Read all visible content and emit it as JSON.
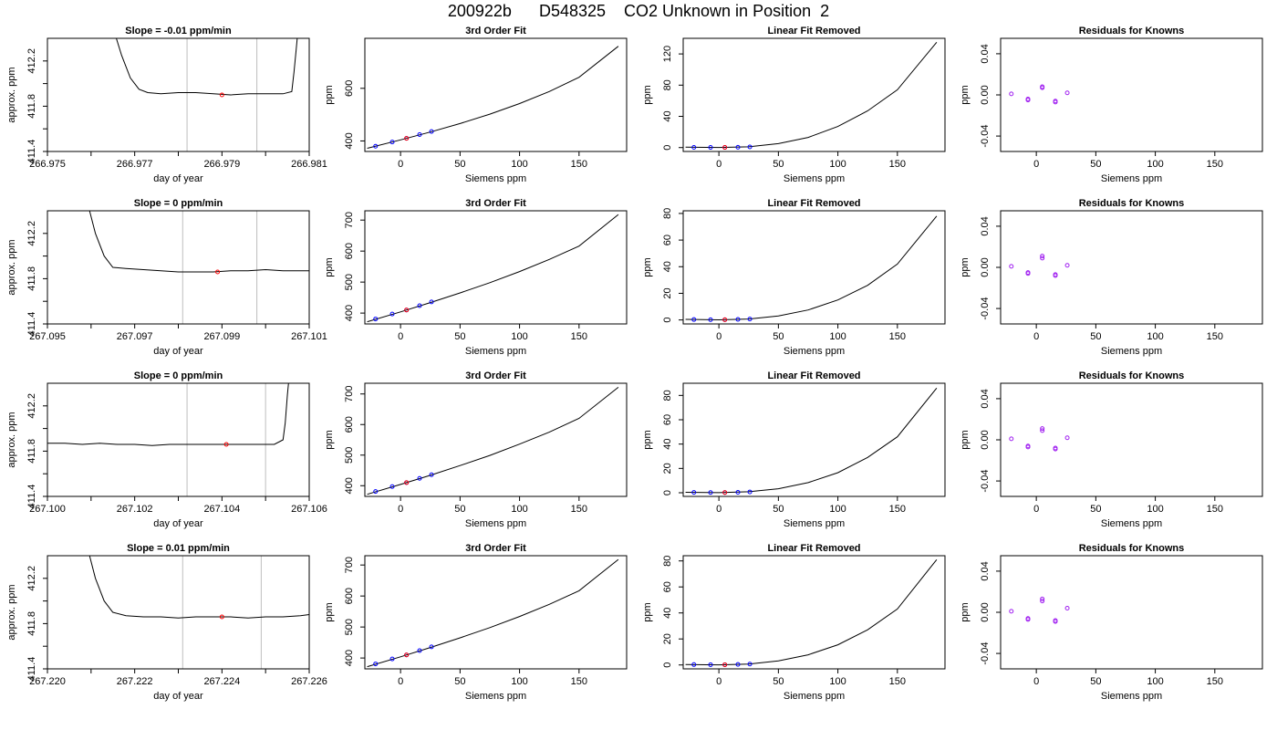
{
  "title": "200922b      D548325    CO2 Unknown in Position  2",
  "colors": {
    "trace": "#000000",
    "marker_blue": "#0000ff",
    "marker_red": "#ff0000",
    "marker_purple": "#a020f0",
    "vline": "#bebebe"
  },
  "chart_data": [
    {
      "type": "line",
      "row": 1,
      "panel": "time-series",
      "title": "Slope =  -0.01  ppm/min",
      "xlabel": "day of year",
      "ylabel": "approx. ppm",
      "xlim": [
        266.975,
        266.981
      ],
      "ylim": [
        411.4,
        412.4
      ],
      "xticks": [
        "266.975",
        "266.977",
        "266.979",
        "266.981"
      ],
      "yticks": [
        "411.4",
        "411.8",
        "412.2"
      ],
      "vlines": [
        266.9782,
        266.9798
      ],
      "marker": {
        "x": 266.979,
        "y": 411.9
      },
      "series": [
        {
          "x": [
            266.9765,
            266.9767,
            266.9769,
            266.9771,
            266.9773,
            266.9776,
            266.978,
            266.9784,
            266.9788,
            266.9792,
            266.9796,
            266.98,
            266.9804,
            266.9806,
            266.98065,
            266.9807,
            266.98075
          ],
          "y": [
            412.5,
            412.25,
            412.05,
            411.95,
            411.92,
            411.91,
            411.92,
            411.92,
            411.91,
            411.9,
            411.91,
            411.91,
            411.91,
            411.93,
            412.1,
            412.3,
            412.5
          ]
        }
      ]
    },
    {
      "type": "line",
      "row": 1,
      "panel": "fit",
      "title": "3rd Order Fit",
      "xlabel": "Siemens ppm",
      "ylabel": "ppm",
      "xlim": [
        -30,
        190
      ],
      "ylim": [
        360,
        790
      ],
      "xticks": [
        "0",
        "50",
        "100",
        "150"
      ],
      "yticks": [
        "400",
        "600"
      ],
      "curve": {
        "x": [
          -28,
          0,
          25,
          50,
          75,
          100,
          125,
          150,
          183
        ],
        "y": [
          372,
          404,
          434,
          466,
          502,
          542,
          588,
          642,
          760
        ]
      },
      "points": {
        "x": [
          -21,
          -7,
          5,
          16,
          26
        ],
        "y": [
          380,
          396,
          410,
          424,
          436
        ]
      },
      "ref_point": {
        "x": 5,
        "y": 410
      }
    },
    {
      "type": "line",
      "row": 1,
      "panel": "residual-fit",
      "title": "Linear Fit Removed",
      "xlabel": "Siemens ppm",
      "ylabel": "ppm",
      "xlim": [
        -30,
        190
      ],
      "ylim": [
        -5,
        140
      ],
      "xticks": [
        "0",
        "50",
        "100",
        "150"
      ],
      "yticks": [
        "0",
        "40",
        "80",
        "120"
      ],
      "curve": {
        "x": [
          -28,
          0,
          25,
          50,
          75,
          100,
          125,
          150,
          183
        ],
        "y": [
          0.5,
          0.1,
          1.0,
          5.0,
          13.0,
          27.0,
          47.0,
          74.0,
          135.0
        ]
      },
      "points": {
        "x": [
          -21,
          -7,
          5,
          16,
          26
        ],
        "y": [
          0.3,
          0.2,
          0.2,
          0.4,
          0.8
        ]
      },
      "ref_point": {
        "x": 5,
        "y": 0.2
      }
    },
    {
      "type": "scatter",
      "row": 1,
      "panel": "residuals",
      "title": "Residuals for Knowns",
      "xlabel": "Siemens ppm",
      "ylabel": "ppm",
      "xlim": [
        -30,
        190
      ],
      "ylim": [
        -0.055,
        0.055
      ],
      "xticks": [
        "0",
        "50",
        "100",
        "150"
      ],
      "yticks": [
        "-0.04",
        "0.00",
        "0.04"
      ],
      "points": {
        "x": [
          -21,
          -7,
          -7,
          5,
          5,
          16,
          16,
          26
        ],
        "y": [
          0.001,
          -0.004,
          -0.005,
          0.008,
          0.007,
          -0.006,
          -0.007,
          0.002
        ]
      }
    },
    {
      "type": "line",
      "row": 2,
      "panel": "time-series",
      "title": "Slope =  0  ppm/min",
      "xlabel": "day of year",
      "ylabel": "approx. ppm",
      "xlim": [
        267.095,
        267.101
      ],
      "ylim": [
        411.4,
        412.4
      ],
      "xticks": [
        "267.095",
        "267.097",
        "267.099",
        "267.101"
      ],
      "yticks": [
        "411.4",
        "411.8",
        "412.2"
      ],
      "vlines": [
        267.0981,
        267.0998
      ],
      "marker": {
        "x": 267.0989,
        "y": 411.86
      },
      "series": [
        {
          "x": [
            267.0959,
            267.0961,
            267.0963,
            267.0965,
            267.0968,
            267.0972,
            267.0976,
            267.098,
            267.0984,
            267.0988,
            267.0992,
            267.0996,
            267.1,
            267.1004,
            267.1008,
            267.101
          ],
          "y": [
            412.5,
            412.2,
            412.0,
            411.9,
            411.89,
            411.88,
            411.87,
            411.86,
            411.86,
            411.86,
            411.87,
            411.87,
            411.88,
            411.87,
            411.87,
            411.87
          ]
        }
      ]
    },
    {
      "type": "line",
      "row": 2,
      "panel": "fit",
      "title": "3rd Order Fit",
      "xlabel": "Siemens ppm",
      "ylabel": "ppm",
      "xlim": [
        -30,
        190
      ],
      "ylim": [
        365,
        730
      ],
      "xticks": [
        "0",
        "50",
        "100",
        "150"
      ],
      "yticks": [
        "400",
        "500",
        "600",
        "700"
      ],
      "curve": {
        "x": [
          -28,
          0,
          25,
          50,
          75,
          100,
          125,
          150,
          183
        ],
        "y": [
          372,
          404,
          434,
          465,
          498,
          534,
          573,
          616,
          718
        ]
      },
      "points": {
        "x": [
          -21,
          -7,
          5,
          16,
          26
        ],
        "y": [
          381,
          397,
          410,
          424,
          436
        ]
      },
      "ref_point": {
        "x": 5,
        "y": 410
      }
    },
    {
      "type": "line",
      "row": 2,
      "panel": "residual-fit",
      "title": "Linear Fit Removed",
      "xlabel": "Siemens ppm",
      "ylabel": "ppm",
      "xlim": [
        -30,
        190
      ],
      "ylim": [
        -3,
        82
      ],
      "xticks": [
        "0",
        "50",
        "100",
        "150"
      ],
      "yticks": [
        "0",
        "20",
        "40",
        "60",
        "80"
      ],
      "curve": {
        "x": [
          -28,
          0,
          25,
          50,
          75,
          100,
          125,
          150,
          183
        ],
        "y": [
          0.4,
          0.1,
          0.7,
          3.0,
          7.5,
          15.0,
          26.0,
          42.0,
          78.0
        ]
      },
      "points": {
        "x": [
          -21,
          -7,
          5,
          16,
          26
        ],
        "y": [
          0.3,
          0.2,
          0.2,
          0.4,
          0.7
        ]
      },
      "ref_point": {
        "x": 5,
        "y": 0.2
      }
    },
    {
      "type": "scatter",
      "row": 2,
      "panel": "residuals",
      "title": "Residuals for Knowns",
      "xlabel": "Siemens ppm",
      "ylabel": "ppm",
      "xlim": [
        -30,
        190
      ],
      "ylim": [
        -0.055,
        0.055
      ],
      "xticks": [
        "0",
        "50",
        "100",
        "150"
      ],
      "yticks": [
        "-0.04",
        "0.00",
        "0.04"
      ],
      "points": {
        "x": [
          -21,
          -7,
          -7,
          5,
          5,
          16,
          16,
          26
        ],
        "y": [
          0.001,
          -0.005,
          -0.006,
          0.011,
          0.009,
          -0.007,
          -0.008,
          0.002
        ]
      }
    },
    {
      "type": "line",
      "row": 3,
      "panel": "time-series",
      "title": "Slope =  0  ppm/min",
      "xlabel": "day of year",
      "ylabel": "approx. ppm",
      "xlim": [
        267.1,
        267.106
      ],
      "ylim": [
        411.4,
        412.4
      ],
      "xticks": [
        "267.100",
        "267.102",
        "267.104",
        "267.106"
      ],
      "yticks": [
        "411.4",
        "411.8",
        "412.2"
      ],
      "vlines": [
        267.1032,
        267.105
      ],
      "marker": {
        "x": 267.1041,
        "y": 411.86
      },
      "series": [
        {
          "x": [
            267.1,
            267.1004,
            267.1008,
            267.1012,
            267.1016,
            267.102,
            267.1024,
            267.1028,
            267.1032,
            267.1036,
            267.104,
            267.1044,
            267.1048,
            267.1052,
            267.1054,
            267.10545,
            267.1055,
            267.10555
          ],
          "y": [
            411.87,
            411.87,
            411.86,
            411.87,
            411.86,
            411.86,
            411.85,
            411.86,
            411.86,
            411.86,
            411.86,
            411.86,
            411.86,
            411.86,
            411.9,
            412.05,
            412.3,
            412.5
          ]
        }
      ]
    },
    {
      "type": "line",
      "row": 3,
      "panel": "fit",
      "title": "3rd Order Fit",
      "xlabel": "Siemens ppm",
      "ylabel": "ppm",
      "xlim": [
        -30,
        190
      ],
      "ylim": [
        365,
        735
      ],
      "xticks": [
        "0",
        "50",
        "100",
        "150"
      ],
      "yticks": [
        "400",
        "500",
        "600",
        "700"
      ],
      "curve": {
        "x": [
          -28,
          0,
          25,
          50,
          75,
          100,
          125,
          150,
          183
        ],
        "y": [
          372,
          404,
          434,
          466,
          499,
          536,
          575,
          620,
          722
        ]
      },
      "points": {
        "x": [
          -21,
          -7,
          5,
          16,
          26
        ],
        "y": [
          381,
          397,
          410,
          424,
          436
        ]
      },
      "ref_point": {
        "x": 5,
        "y": 410
      }
    },
    {
      "type": "line",
      "row": 3,
      "panel": "residual-fit",
      "title": "Linear Fit Removed",
      "xlabel": "Siemens ppm",
      "ylabel": "ppm",
      "xlim": [
        -30,
        190
      ],
      "ylim": [
        -3,
        90
      ],
      "xticks": [
        "0",
        "50",
        "100",
        "150"
      ],
      "yticks": [
        "0",
        "20",
        "40",
        "60",
        "80"
      ],
      "curve": {
        "x": [
          -28,
          0,
          25,
          50,
          75,
          100,
          125,
          150,
          183
        ],
        "y": [
          0.4,
          0.1,
          0.8,
          3.3,
          8.3,
          16.5,
          29.0,
          46.0,
          86.0
        ]
      },
      "points": {
        "x": [
          -21,
          -7,
          5,
          16,
          26
        ],
        "y": [
          0.3,
          0.2,
          0.2,
          0.4,
          0.7
        ]
      },
      "ref_point": {
        "x": 5,
        "y": 0.2
      }
    },
    {
      "type": "scatter",
      "row": 3,
      "panel": "residuals",
      "title": "Residuals for Knowns",
      "xlabel": "Siemens ppm",
      "ylabel": "ppm",
      "xlim": [
        -30,
        190
      ],
      "ylim": [
        -0.055,
        0.055
      ],
      "xticks": [
        "0",
        "50",
        "100",
        "150"
      ],
      "yticks": [
        "-0.04",
        "0.00",
        "0.04"
      ],
      "points": {
        "x": [
          -21,
          -7,
          -7,
          5,
          5,
          16,
          16,
          26
        ],
        "y": [
          0.001,
          -0.006,
          -0.007,
          0.011,
          0.009,
          -0.008,
          -0.009,
          0.002
        ]
      }
    },
    {
      "type": "line",
      "row": 4,
      "panel": "time-series",
      "title": "Slope =  0.01  ppm/min",
      "xlabel": "day of year",
      "ylabel": "approx. ppm",
      "xlim": [
        267.22,
        267.226
      ],
      "ylim": [
        411.4,
        412.4
      ],
      "xticks": [
        "267.220",
        "267.222",
        "267.224",
        "267.226"
      ],
      "yticks": [
        "411.4",
        "411.8",
        "412.2"
      ],
      "vlines": [
        267.2231,
        267.2249
      ],
      "marker": {
        "x": 267.224,
        "y": 411.86
      },
      "series": [
        {
          "x": [
            267.2209,
            267.2211,
            267.2213,
            267.2215,
            267.2218,
            267.2222,
            267.2226,
            267.223,
            267.2234,
            267.2238,
            267.2242,
            267.2246,
            267.225,
            267.2254,
            267.2258,
            267.226
          ],
          "y": [
            412.5,
            412.2,
            412.0,
            411.9,
            411.87,
            411.86,
            411.86,
            411.85,
            411.86,
            411.86,
            411.86,
            411.85,
            411.86,
            411.86,
            411.87,
            411.88
          ]
        }
      ]
    },
    {
      "type": "line",
      "row": 4,
      "panel": "fit",
      "title": "3rd Order Fit",
      "xlabel": "Siemens ppm",
      "ylabel": "ppm",
      "xlim": [
        -30,
        190
      ],
      "ylim": [
        365,
        730
      ],
      "xticks": [
        "0",
        "50",
        "100",
        "150"
      ],
      "yticks": [
        "400",
        "500",
        "600",
        "700"
      ],
      "curve": {
        "x": [
          -28,
          0,
          25,
          50,
          75,
          100,
          125,
          150,
          183
        ],
        "y": [
          372,
          404,
          434,
          465,
          498,
          534,
          573,
          617,
          718
        ]
      },
      "points": {
        "x": [
          -21,
          -7,
          5,
          16,
          26
        ],
        "y": [
          381,
          397,
          410,
          424,
          436
        ]
      },
      "ref_point": {
        "x": 5,
        "y": 410
      }
    },
    {
      "type": "line",
      "row": 4,
      "panel": "residual-fit",
      "title": "Linear Fit Removed",
      "xlabel": "Siemens ppm",
      "ylabel": "ppm",
      "xlim": [
        -30,
        190
      ],
      "ylim": [
        -3,
        84
      ],
      "xticks": [
        "0",
        "50",
        "100",
        "150"
      ],
      "yticks": [
        "0",
        "20",
        "40",
        "60",
        "80"
      ],
      "curve": {
        "x": [
          -28,
          0,
          25,
          50,
          75,
          100,
          125,
          150,
          183
        ],
        "y": [
          0.4,
          0.1,
          0.7,
          3.1,
          7.8,
          15.5,
          27.0,
          43.0,
          81.0
        ]
      },
      "points": {
        "x": [
          -21,
          -7,
          5,
          16,
          26
        ],
        "y": [
          0.3,
          0.2,
          0.2,
          0.4,
          0.7
        ]
      },
      "ref_point": {
        "x": 5,
        "y": 0.2
      }
    },
    {
      "type": "scatter",
      "row": 4,
      "panel": "residuals",
      "title": "Residuals for Knowns",
      "xlabel": "Siemens ppm",
      "ylabel": "ppm",
      "xlim": [
        -30,
        190
      ],
      "ylim": [
        -0.055,
        0.055
      ],
      "xticks": [
        "0",
        "50",
        "100",
        "150"
      ],
      "yticks": [
        "-0.04",
        "0.00",
        "0.04"
      ],
      "points": {
        "x": [
          -21,
          -7,
          -7,
          5,
          5,
          16,
          16,
          26
        ],
        "y": [
          0.001,
          -0.006,
          -0.007,
          0.013,
          0.011,
          -0.008,
          -0.009,
          0.004
        ]
      }
    }
  ]
}
